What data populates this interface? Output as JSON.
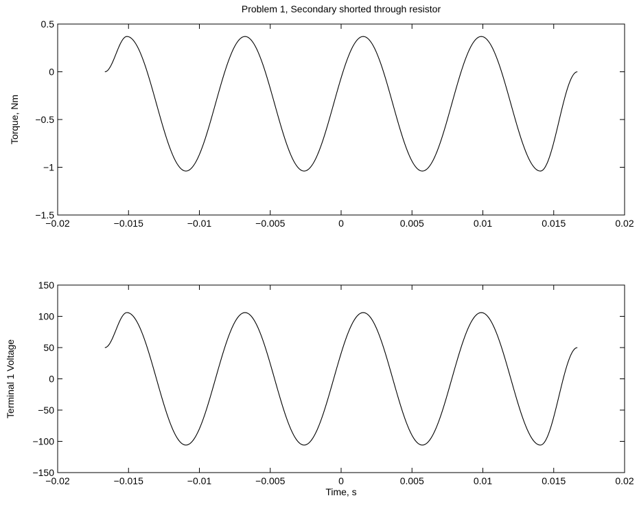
{
  "figure": {
    "title": "Problem 1, Secondary shorted through resistor",
    "background": "#ffffff",
    "line_color": "#000000"
  },
  "chart_data": [
    {
      "type": "line",
      "title": "Problem 1, Secondary shorted through resistor",
      "xlabel": "",
      "ylabel": "Torque, Nm",
      "xlim": [
        -0.02,
        0.02
      ],
      "ylim": [
        -1.5,
        0.5
      ],
      "xticks": [
        -0.02,
        -0.015,
        -0.01,
        -0.005,
        0,
        0.005,
        0.01,
        0.015,
        0.02
      ],
      "xtick_labels": [
        "−0.02",
        "−0.015",
        "−0.01",
        "−0.005",
        "0",
        "0.005",
        "0.01",
        "0.015",
        "0.02"
      ],
      "yticks": [
        0.5,
        0,
        -0.5,
        -1,
        -1.5
      ],
      "ytick_labels": [
        "0.5",
        "0",
        "−0.5",
        "−1",
        "−1.5"
      ],
      "grid": false,
      "series": [
        {
          "x": [
            -0.01667,
            -0.01511,
            -0.01095,
            -0.00678,
            -0.00261,
            0.00156,
            0.00573,
            0.00989,
            0.01406,
            0.01667
          ],
          "values": [
            0.0,
            0.37,
            -1.04,
            0.37,
            -1.04,
            0.37,
            -1.04,
            0.37,
            -1.04,
            0.0
          ]
        }
      ]
    },
    {
      "type": "line",
      "title": "",
      "xlabel": "Time, s",
      "ylabel": "Terminal 1 Voltage",
      "xlim": [
        -0.02,
        0.02
      ],
      "ylim": [
        -150,
        150
      ],
      "xticks": [
        -0.02,
        -0.015,
        -0.01,
        -0.005,
        0,
        0.005,
        0.01,
        0.015,
        0.02
      ],
      "xtick_labels": [
        "−0.02",
        "−0.015",
        "−0.01",
        "−0.005",
        "0",
        "0.005",
        "0.01",
        "0.015",
        "0.02"
      ],
      "yticks": [
        150,
        100,
        50,
        0,
        -50,
        -100,
        -150
      ],
      "ytick_labels": [
        "150",
        "100",
        "50",
        "0",
        "−50",
        "−100",
        "−150"
      ],
      "grid": false,
      "series": [
        {
          "x": [
            -0.01667,
            -0.01511,
            -0.01095,
            -0.00678,
            -0.00261,
            0.00156,
            0.00573,
            0.00989,
            0.01406,
            0.01667
          ],
          "values": [
            50,
            106,
            -106,
            106,
            -106,
            106,
            -106,
            106,
            -106,
            50
          ]
        }
      ]
    }
  ]
}
